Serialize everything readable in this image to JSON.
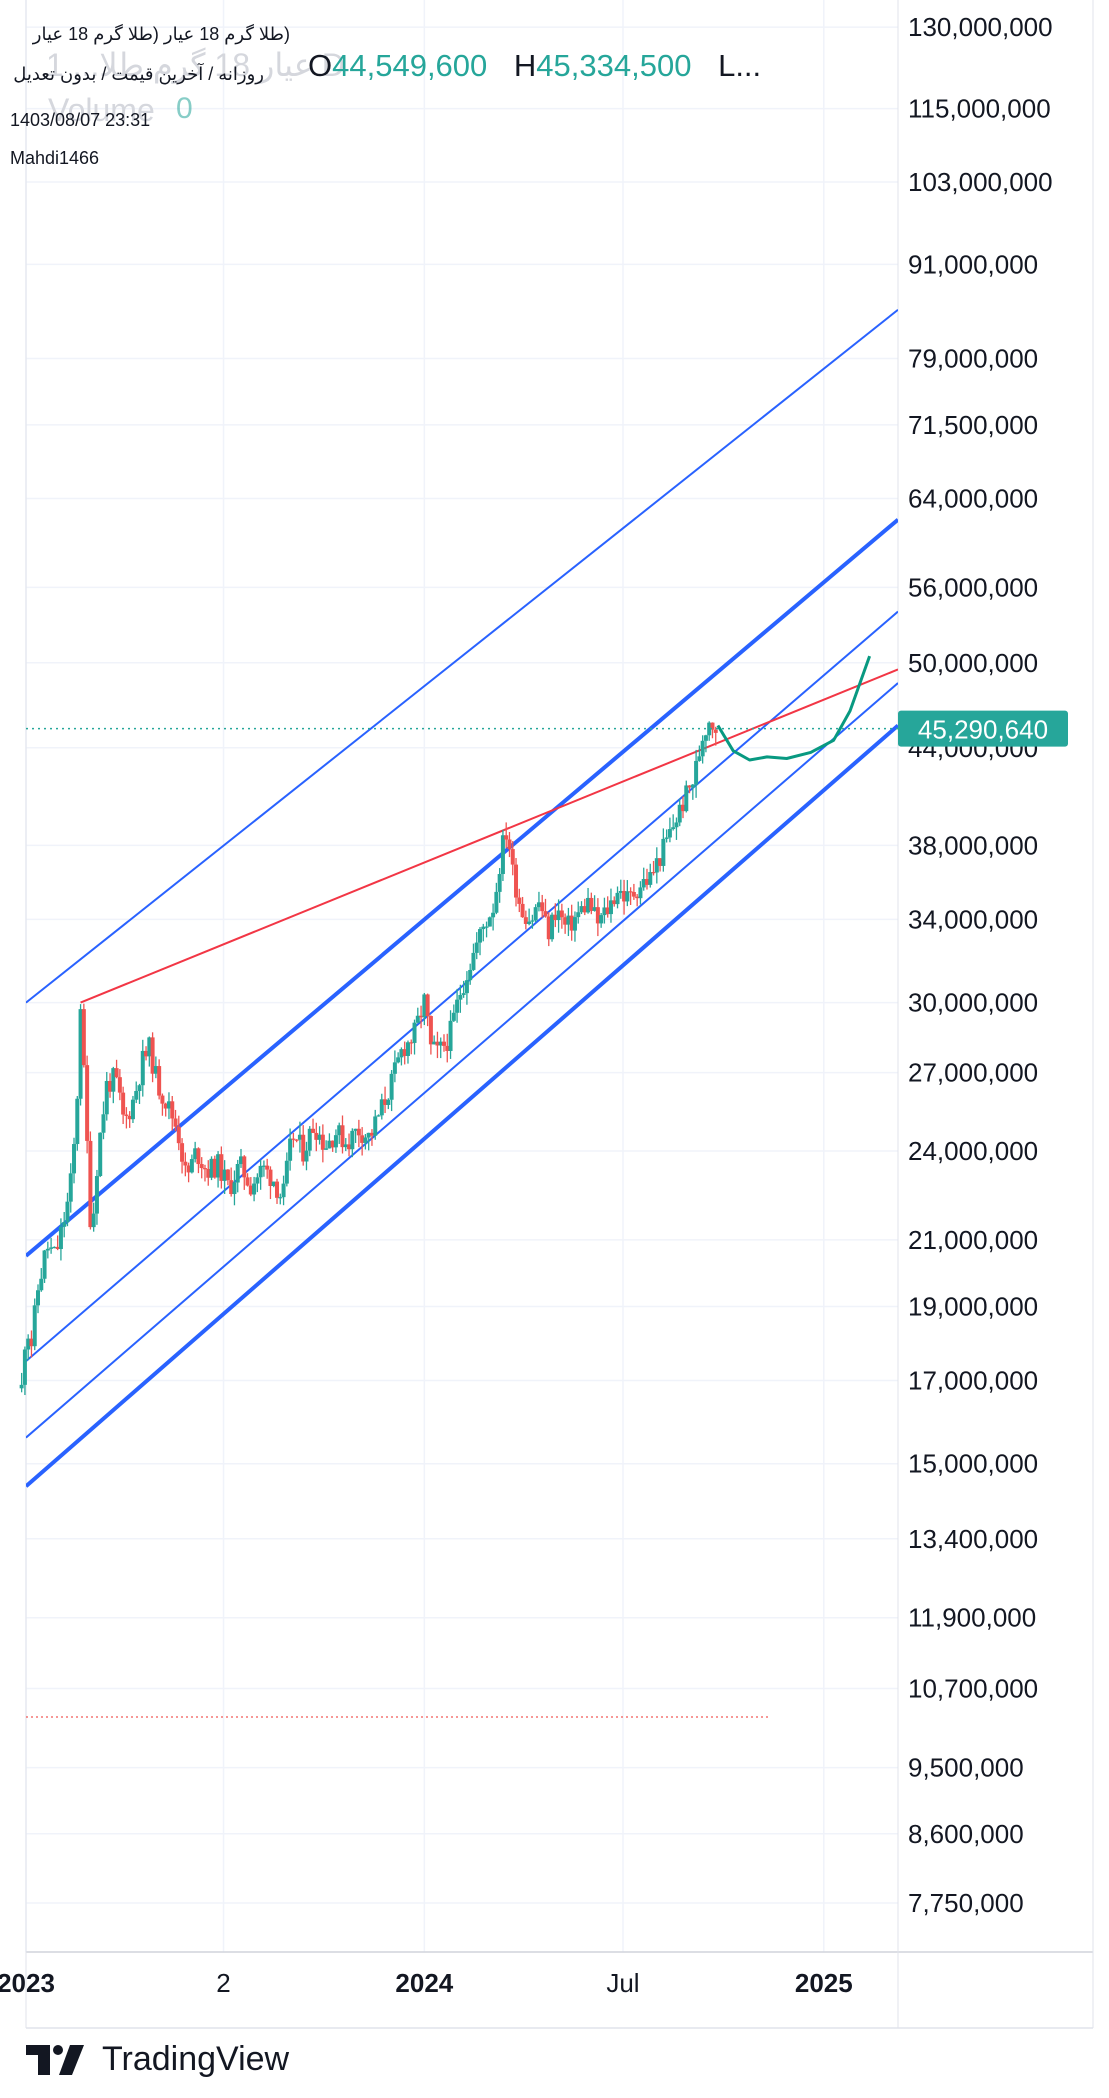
{
  "symbol": {
    "title": "(طلا گرم 18 عیار (طلا گرم 18 عیار",
    "subtitle": "روزانه / آخرین قیمت / بدون تعدیل",
    "datetime": "1403/08/07 23:31",
    "author": "Mahdi1466",
    "ghost_text": "1 ...عیار 18 گرم طلا D",
    "volume_label": "Volume",
    "volume_value": "0"
  },
  "ohlc": {
    "o_label": "O",
    "o_value": "44,549,600",
    "h_label": "H",
    "h_value": "45,334,500",
    "l_label": "L..."
  },
  "brand": {
    "name": "TradingView"
  },
  "colors": {
    "up": "#26a69a",
    "down": "#ef5350",
    "channel": "#2962ff",
    "trendline": "#f23645",
    "projection": "#089981",
    "grid": "#f0f3fa",
    "axis_text": "#131722"
  },
  "chart_data": {
    "type": "candlestick",
    "scale": "log",
    "ylim": [
      7200000,
      131000000
    ],
    "xlim": [
      "2023-01-01",
      "2025-03-10"
    ],
    "y_ticks": [
      "130,000,000",
      "115,000,000",
      "103,000,000",
      "91,000,000",
      "79,000,000",
      "71,500,000",
      "64,000,000",
      "56,000,000",
      "50,000,000",
      "44,000,000",
      "38,000,000",
      "34,000,000",
      "30,000,000",
      "27,000,000",
      "24,000,000",
      "21,000,000",
      "19,000,000",
      "17,000,000",
      "15,000,000",
      "13,400,000",
      "11,900,000",
      "10,700,000",
      "9,500,000",
      "8,600,000",
      "7,750,000"
    ],
    "x_ticks": [
      {
        "label": "2023",
        "date": "2023-01-01",
        "bold": true
      },
      {
        "label": "2",
        "date": "2023-07-01",
        "bold": false
      },
      {
        "label": "2024",
        "date": "2024-01-01",
        "bold": true
      },
      {
        "label": "Jul",
        "date": "2024-07-01",
        "bold": false
      },
      {
        "label": "2025",
        "date": "2025-01-01",
        "bold": true
      }
    ],
    "last_price": "45,290,640",
    "last_price_value": 45290640,
    "low_marker_value": 10250000,
    "grid": true,
    "price_path": [
      [
        "2022-12-28",
        16800000
      ],
      [
        "2023-01-01",
        18500000
      ],
      [
        "2023-01-06",
        18000000
      ],
      [
        "2023-01-12",
        19500000
      ],
      [
        "2023-01-20",
        20800000
      ],
      [
        "2023-01-28",
        20500000
      ],
      [
        "2023-02-04",
        21500000
      ],
      [
        "2023-02-10",
        22500000
      ],
      [
        "2023-02-16",
        25000000
      ],
      [
        "2023-02-20",
        30000000
      ],
      [
        "2023-02-24",
        26000000
      ],
      [
        "2023-03-02",
        21000000
      ],
      [
        "2023-03-08",
        24000000
      ],
      [
        "2023-03-16",
        26500000
      ],
      [
        "2023-03-24",
        26800000
      ],
      [
        "2023-04-01",
        25000000
      ],
      [
        "2023-04-10",
        26000000
      ],
      [
        "2023-04-18",
        27500000
      ],
      [
        "2023-04-24",
        28000000
      ],
      [
        "2023-05-02",
        26500000
      ],
      [
        "2023-05-10",
        25800000
      ],
      [
        "2023-05-20",
        24800000
      ],
      [
        "2023-05-28",
        23000000
      ],
      [
        "2023-06-06",
        24000000
      ],
      [
        "2023-06-16",
        23300000
      ],
      [
        "2023-06-26",
        23500000
      ],
      [
        "2023-07-06",
        22700000
      ],
      [
        "2023-07-16",
        23500000
      ],
      [
        "2023-07-26",
        22800000
      ],
      [
        "2023-08-06",
        23400000
      ],
      [
        "2023-08-16",
        23000000
      ],
      [
        "2023-08-24",
        22300000
      ],
      [
        "2023-09-02",
        24600000
      ],
      [
        "2023-09-12",
        24000000
      ],
      [
        "2023-09-22",
        25000000
      ],
      [
        "2023-10-02",
        24200000
      ],
      [
        "2023-10-12",
        24700000
      ],
      [
        "2023-10-22",
        24300000
      ],
      [
        "2023-11-01",
        24800000
      ],
      [
        "2023-11-12",
        24500000
      ],
      [
        "2023-11-22",
        25500000
      ],
      [
        "2023-12-02",
        26600000
      ],
      [
        "2023-12-12",
        28000000
      ],
      [
        "2023-12-22",
        28500000
      ],
      [
        "2024-01-02",
        30200000
      ],
      [
        "2024-01-06",
        28000000
      ],
      [
        "2024-01-14",
        27800000
      ],
      [
        "2024-01-24",
        28500000
      ],
      [
        "2024-02-03",
        30500000
      ],
      [
        "2024-02-13",
        32000000
      ],
      [
        "2024-02-23",
        33500000
      ],
      [
        "2024-03-05",
        34800000
      ],
      [
        "2024-03-12",
        37800000
      ],
      [
        "2024-03-17",
        39000000
      ],
      [
        "2024-03-22",
        36500000
      ],
      [
        "2024-03-30",
        34500000
      ],
      [
        "2024-04-08",
        34000000
      ],
      [
        "2024-04-16",
        35000000
      ],
      [
        "2024-04-23",
        33200000
      ],
      [
        "2024-05-01",
        34600000
      ],
      [
        "2024-05-10",
        33500000
      ],
      [
        "2024-05-20",
        34200000
      ],
      [
        "2024-05-30",
        34900000
      ],
      [
        "2024-06-08",
        33800000
      ],
      [
        "2024-06-18",
        34600000
      ],
      [
        "2024-06-26",
        35600000
      ],
      [
        "2024-07-06",
        35000000
      ],
      [
        "2024-07-16",
        35800000
      ],
      [
        "2024-07-26",
        36200000
      ],
      [
        "2024-08-05",
        37500000
      ],
      [
        "2024-08-15",
        39000000
      ],
      [
        "2024-08-25",
        40500000
      ],
      [
        "2024-09-04",
        42000000
      ],
      [
        "2024-09-12",
        44800000
      ],
      [
        "2024-09-18",
        46000000
      ],
      [
        "2024-09-22",
        45600000
      ],
      [
        "2024-09-26",
        45290640
      ]
    ],
    "annotations": {
      "channel_lines": [
        {
          "from": [
            "2023-01-01",
            30000000
          ],
          "to": [
            "2025-03-10",
            85000000
          ]
        },
        {
          "from": [
            "2023-01-01",
            20500000
          ],
          "to": [
            "2025-03-10",
            62000000
          ]
        },
        {
          "from": [
            "2023-01-01",
            17500000
          ],
          "to": [
            "2025-03-10",
            54000000
          ]
        },
        {
          "from": [
            "2023-01-01",
            15600000
          ],
          "to": [
            "2025-03-10",
            48500000
          ]
        },
        {
          "from": [
            "2023-01-01",
            14500000
          ],
          "to": [
            "2025-03-10",
            45500000
          ]
        }
      ],
      "resistance_line": {
        "from": [
          "2023-02-20",
          30000000
        ],
        "to": [
          "2025-03-10",
          49500000
        ]
      },
      "projection": [
        [
          "2024-09-26",
          45500000
        ],
        [
          "2024-10-10",
          43800000
        ],
        [
          "2024-10-25",
          43200000
        ],
        [
          "2024-11-10",
          43400000
        ],
        [
          "2024-11-28",
          43300000
        ],
        [
          "2024-12-20",
          43700000
        ],
        [
          "2025-01-10",
          44500000
        ],
        [
          "2025-01-25",
          46500000
        ],
        [
          "2025-02-12",
          50500000
        ]
      ]
    }
  }
}
